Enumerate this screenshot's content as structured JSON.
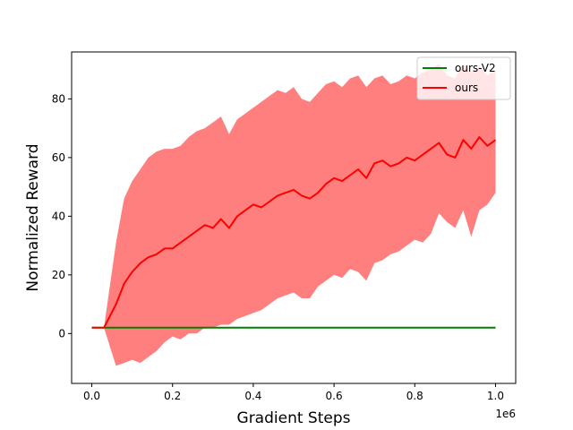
{
  "chart_data": {
    "type": "line",
    "title": "",
    "xlabel": "Gradient Steps",
    "ylabel": "Normalized Reward",
    "x_offset_label": "1e6",
    "xlim": [
      -0.05,
      1.05
    ],
    "ylim": [
      -17,
      96
    ],
    "xticks": [
      0.0,
      0.2,
      0.4,
      0.6,
      0.8,
      1.0
    ],
    "xtick_labels": [
      "0.0",
      "0.2",
      "0.4",
      "0.6",
      "0.8",
      "1.0"
    ],
    "yticks": [
      0,
      20,
      40,
      60,
      80
    ],
    "ytick_labels": [
      "0",
      "20",
      "40",
      "60",
      "80"
    ],
    "grid": false,
    "legend_position": "top-right",
    "series": [
      {
        "name": "ours-V2",
        "color": "#008000",
        "x": [
          0.0,
          1.0
        ],
        "values": [
          2,
          2
        ]
      },
      {
        "name": "ours",
        "color": "#ff0000",
        "band_color": "#ff0000",
        "band_opacity": 0.5,
        "x": [
          0.0,
          0.03,
          0.06,
          0.08,
          0.1,
          0.12,
          0.14,
          0.16,
          0.18,
          0.2,
          0.22,
          0.24,
          0.26,
          0.28,
          0.3,
          0.32,
          0.34,
          0.36,
          0.38,
          0.4,
          0.42,
          0.44,
          0.46,
          0.48,
          0.5,
          0.52,
          0.54,
          0.56,
          0.58,
          0.6,
          0.62,
          0.64,
          0.66,
          0.68,
          0.7,
          0.72,
          0.74,
          0.76,
          0.78,
          0.8,
          0.82,
          0.84,
          0.86,
          0.88,
          0.9,
          0.92,
          0.94,
          0.96,
          0.98,
          1.0
        ],
        "values": [
          2,
          2,
          10,
          17,
          21,
          24,
          26,
          27,
          29,
          29,
          31,
          33,
          35,
          37,
          36,
          39,
          36,
          40,
          42,
          44,
          43,
          45,
          47,
          48,
          49,
          47,
          46,
          48,
          51,
          53,
          52,
          54,
          56,
          53,
          58,
          59,
          57,
          58,
          60,
          59,
          61,
          63,
          65,
          61,
          60,
          66,
          63,
          67,
          64,
          66
        ],
        "lower": [
          2,
          2,
          -11,
          -10,
          -9,
          -10,
          -8,
          -6,
          -3,
          -1,
          -2,
          0,
          0,
          2,
          2,
          3,
          3,
          5,
          6,
          7,
          8,
          10,
          12,
          13,
          14,
          12,
          12,
          16,
          18,
          20,
          19,
          22,
          21,
          18,
          24,
          25,
          27,
          28,
          30,
          32,
          31,
          34,
          41,
          38,
          36,
          42,
          33,
          42,
          44,
          48
        ],
        "upper": [
          2,
          2,
          31,
          46,
          52,
          56,
          60,
          62,
          63,
          63,
          64,
          67,
          69,
          70,
          72,
          74,
          68,
          73,
          75,
          77,
          79,
          81,
          83,
          82,
          84,
          80,
          79,
          82,
          85,
          86,
          84,
          87,
          88,
          84,
          87,
          88,
          85,
          86,
          88,
          87,
          89,
          90,
          92,
          88,
          87,
          92,
          89,
          91,
          88,
          90
        ]
      }
    ]
  }
}
